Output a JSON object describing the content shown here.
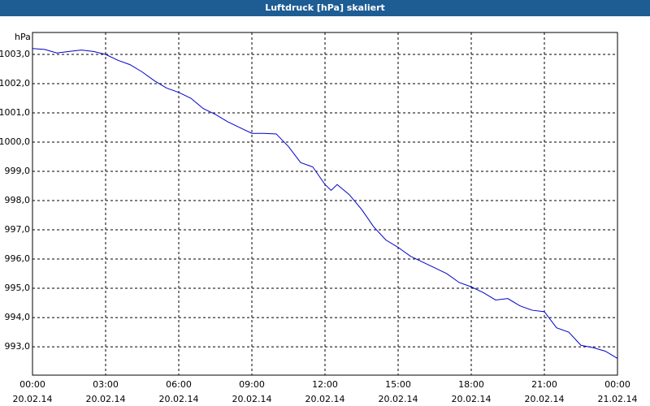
{
  "chart_data": {
    "type": "line",
    "title": "Luftdruck [hPa] skaliert",
    "y_label": "hPa",
    "x": [
      0,
      0.5,
      1,
      1.5,
      2,
      2.5,
      3,
      3.5,
      4,
      4.5,
      5,
      5.5,
      6,
      6.5,
      7,
      7.5,
      8,
      8.5,
      9,
      9.5,
      10,
      10.5,
      11,
      11.5,
      12,
      12.25,
      12.5,
      13,
      13.5,
      14,
      14.5,
      15,
      15.5,
      16,
      16.5,
      17,
      17.5,
      18,
      18.5,
      19,
      19.5,
      20,
      20.5,
      21,
      21.5,
      22,
      22.5,
      23,
      23.5,
      24
    ],
    "series": [
      {
        "name": "Luftdruck",
        "color": "#0000cc",
        "values": [
          1003.2,
          1003.17,
          1003.05,
          1003.1,
          1003.15,
          1003.1,
          1003.0,
          1002.8,
          1002.65,
          1002.4,
          1002.1,
          1001.85,
          1001.7,
          1001.5,
          1001.15,
          1000.95,
          1000.7,
          1000.5,
          1000.3,
          1000.3,
          1000.28,
          999.85,
          999.3,
          999.15,
          998.55,
          998.35,
          998.55,
          998.2,
          997.7,
          997.1,
          996.65,
          996.4,
          996.1,
          995.9,
          995.7,
          995.5,
          995.2,
          995.05,
          994.85,
          994.6,
          994.65,
          994.4,
          994.25,
          994.2,
          993.65,
          993.5,
          993.05,
          992.97,
          992.85,
          992.6
        ]
      }
    ],
    "xlim": [
      0,
      24
    ],
    "xticks": [
      {
        "value": 0,
        "label": "00:00\n20.02.14"
      },
      {
        "value": 3,
        "label": "03:00\n20.02.14"
      },
      {
        "value": 6,
        "label": "06:00\n20.02.14"
      },
      {
        "value": 9,
        "label": "09:00\n20.02.14"
      },
      {
        "value": 12,
        "label": "12:00\n20.02.14"
      },
      {
        "value": 15,
        "label": "15:00\n20.02.14"
      },
      {
        "value": 18,
        "label": "18:00\n20.02.14"
      },
      {
        "value": 21,
        "label": "21:00\n20.02.14"
      },
      {
        "value": 24,
        "label": "00:00\n21.02.14"
      }
    ],
    "ylim": [
      992.03,
      1003.75
    ],
    "yticks": [
      {
        "value": 993,
        "label": "993,0"
      },
      {
        "value": 994,
        "label": "994,0"
      },
      {
        "value": 995,
        "label": "995,0"
      },
      {
        "value": 996,
        "label": "996,0"
      },
      {
        "value": 997,
        "label": "997,0"
      },
      {
        "value": 998,
        "label": "998,0"
      },
      {
        "value": 999,
        "label": "999,0"
      },
      {
        "value": 1000,
        "label": "1000,0"
      },
      {
        "value": 1001,
        "label": "1001,0"
      },
      {
        "value": 1002,
        "label": "1002,0"
      },
      {
        "value": 1003,
        "label": "1003,0"
      }
    ],
    "grid": true
  }
}
